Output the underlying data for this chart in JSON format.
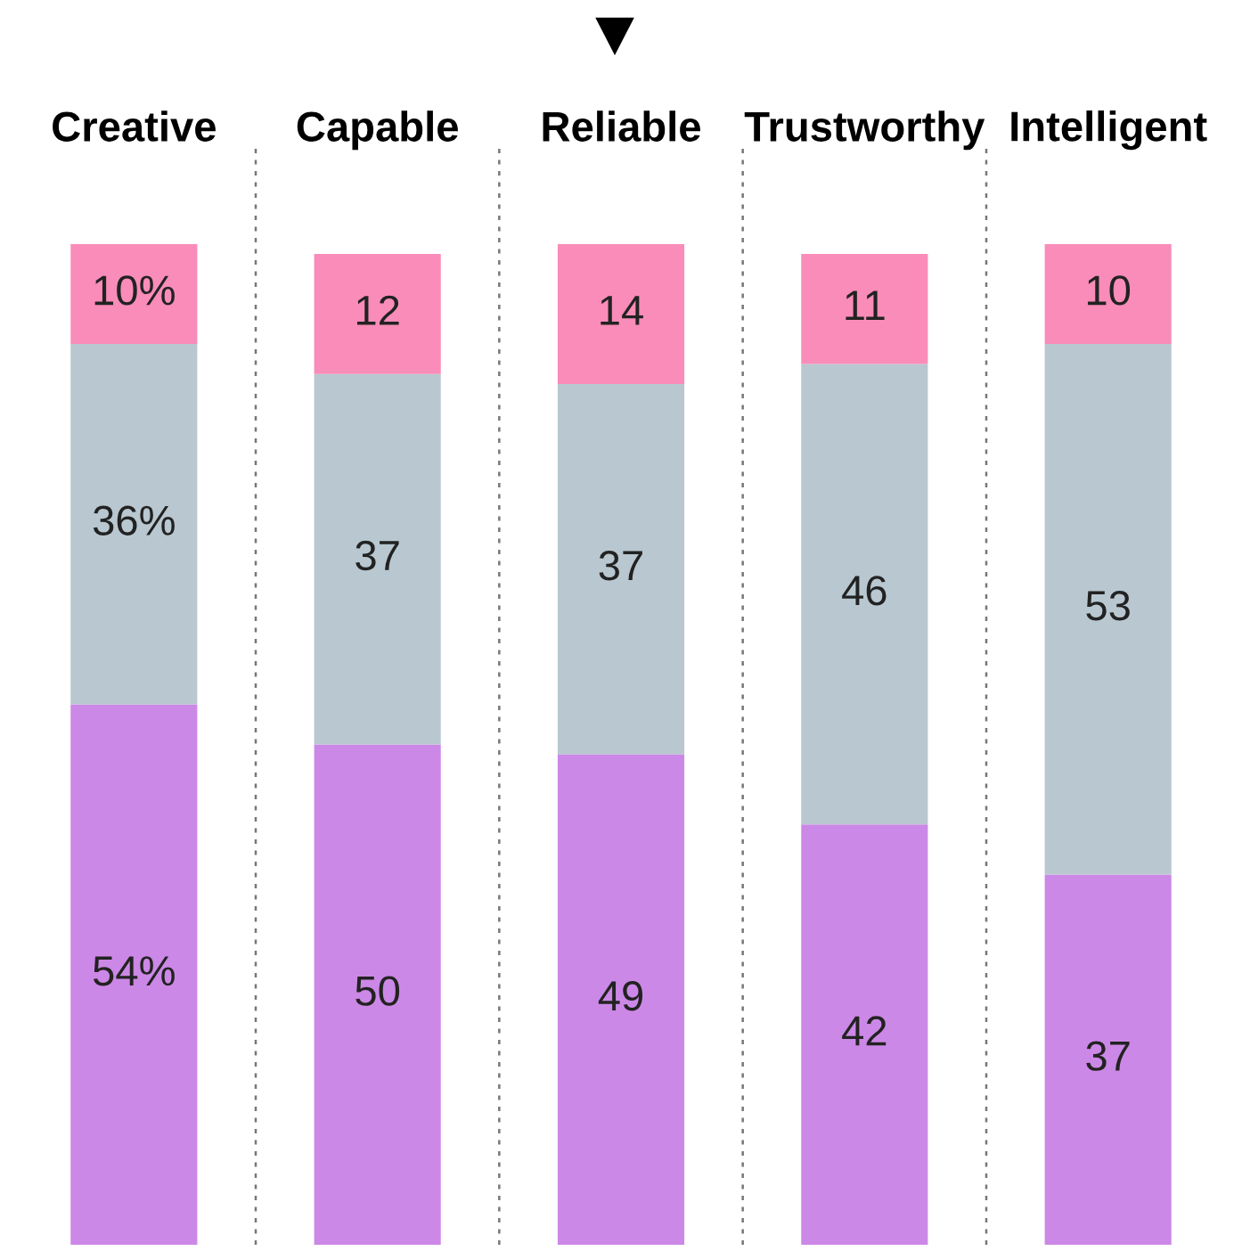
{
  "chart_data": {
    "type": "bar",
    "stacked": true,
    "categories": [
      "Creative",
      "Capable",
      "Reliable",
      "Trustworthy",
      "Intelligent"
    ],
    "series": [
      {
        "color": "#cc88e6",
        "values": [
          54,
          50,
          49,
          42,
          37
        ],
        "value_labels": [
          "54%",
          "50",
          "49",
          "42",
          "37"
        ]
      },
      {
        "color": "#b8c7d0",
        "values": [
          36,
          37,
          37,
          46,
          53
        ],
        "value_labels": [
          "36%",
          "37",
          "37",
          "46",
          "53"
        ]
      },
      {
        "color": "#f98cb9",
        "values": [
          10,
          12,
          14,
          11,
          10
        ],
        "value_labels": [
          "10%",
          "12",
          "14",
          "11",
          "10"
        ]
      }
    ],
    "ylim": [
      0,
      100
    ],
    "tick_labels": "x",
    "grid": false,
    "legend": false
  }
}
